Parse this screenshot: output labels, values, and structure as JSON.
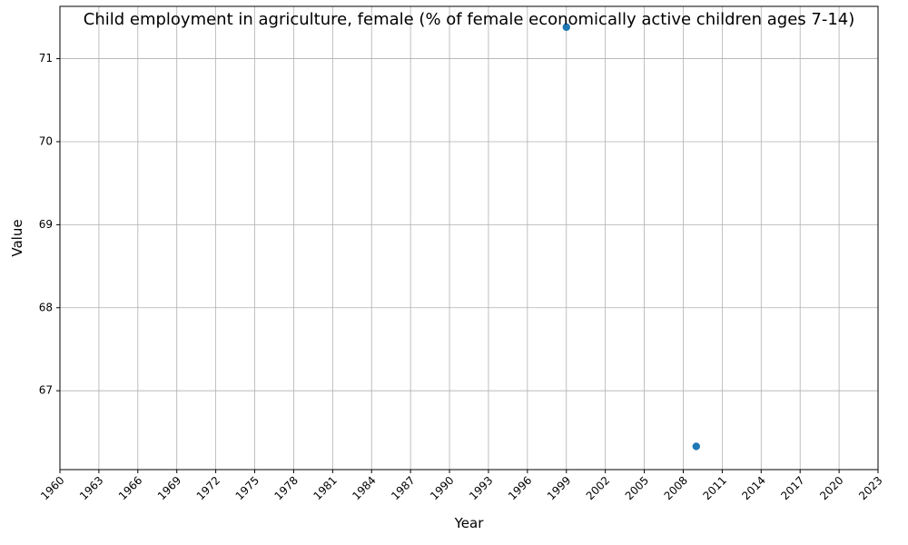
{
  "chart_data": {
    "type": "scatter",
    "title": "Child employment in agriculture, female (% of female economically active children ages 7-14)",
    "xlabel": "Year",
    "ylabel": "Value",
    "xlim": [
      1960,
      2023
    ],
    "ylim": [
      66.05,
      71.63
    ],
    "x_ticks": [
      1960,
      1963,
      1966,
      1969,
      1972,
      1975,
      1978,
      1981,
      1984,
      1987,
      1990,
      1993,
      1996,
      1999,
      2002,
      2005,
      2008,
      2011,
      2014,
      2017,
      2020,
      2023
    ],
    "y_ticks": [
      67,
      68,
      69,
      70,
      71
    ],
    "grid": true,
    "series": [
      {
        "color": "#1f77b4",
        "points": [
          {
            "x": 1999,
            "y": 71.38
          },
          {
            "x": 2009,
            "y": 66.33
          }
        ]
      }
    ]
  }
}
